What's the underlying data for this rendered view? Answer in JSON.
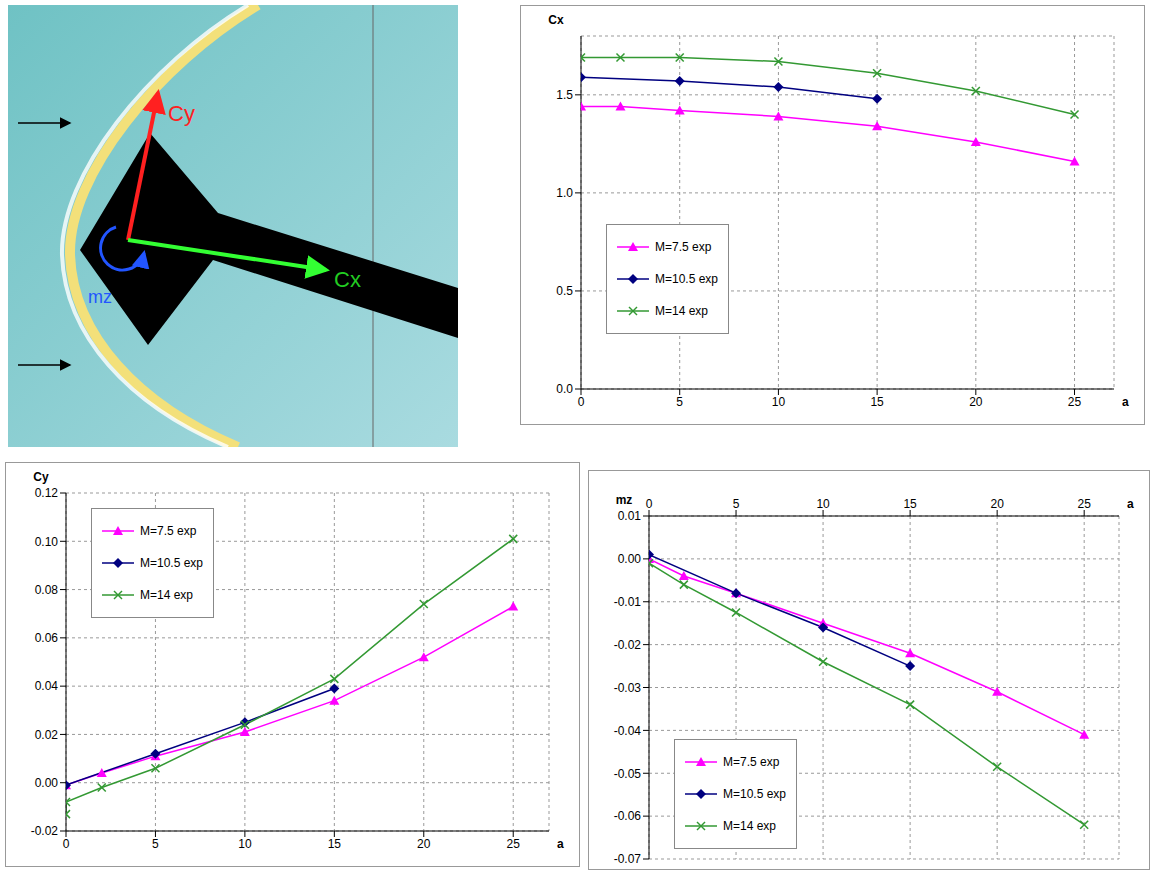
{
  "image": {
    "labels": [
      "Cy",
      "Cx",
      "mz"
    ]
  },
  "chart_data": [
    {
      "type": "line",
      "y_label": "Cx",
      "x_label": "a",
      "xlim": [
        0,
        27
      ],
      "xticks": [
        0,
        5,
        10,
        15,
        20,
        25
      ],
      "ylim": [
        0,
        1.8
      ],
      "yticks": [
        {
          "value": 0,
          "label": "0.0"
        },
        {
          "value": 0.5,
          "label": "0.5"
        },
        {
          "value": 1,
          "label": "1.0"
        },
        {
          "value": 1.5,
          "label": "1.5"
        }
      ],
      "grid": true,
      "legend": "lower left",
      "series": [
        {
          "name": "M=7.5 exp",
          "color": "#ff00ff",
          "marker": "triangle",
          "x": [
            0,
            2,
            5,
            10,
            15,
            20,
            25
          ],
          "values": [
            1.44,
            1.44,
            1.42,
            1.39,
            1.34,
            1.26,
            1.16
          ]
        },
        {
          "name": "M=10.5 exp",
          "color": "#000080",
          "marker": "diamond",
          "x": [
            0,
            5,
            10,
            15
          ],
          "values": [
            1.59,
            1.57,
            1.54,
            1.48
          ]
        },
        {
          "name": "M=14 exp",
          "color": "#339933",
          "marker": "x",
          "x": [
            0,
            2,
            5,
            10,
            15,
            20,
            25
          ],
          "values": [
            1.69,
            1.69,
            1.69,
            1.67,
            1.61,
            1.52,
            1.4
          ]
        }
      ]
    },
    {
      "type": "line",
      "y_label": "Cy",
      "x_label": "a",
      "xlim": [
        0,
        27
      ],
      "xticks": [
        0,
        5,
        10,
        15,
        20,
        25
      ],
      "ylim": [
        -0.02,
        0.12
      ],
      "yticks": [
        -0.02,
        {
          "value": 0,
          "label": "0.00"
        },
        0.02,
        0.04,
        0.06,
        0.08,
        {
          "value": 0.1,
          "label": "0.10"
        },
        0.12
      ],
      "grid": true,
      "legend": "upper left",
      "series": [
        {
          "name": "M=7.5 exp",
          "color": "#ff00ff",
          "marker": "triangle",
          "x": [
            0,
            2,
            5,
            10,
            15,
            20,
            25
          ],
          "values": [
            -0.001,
            0.004,
            0.011,
            0.021,
            0.034,
            0.052,
            0.073
          ]
        },
        {
          "name": "M=10.5 exp",
          "color": "#000080",
          "marker": "diamond",
          "x": [
            0,
            5,
            10,
            15
          ],
          "values": [
            -0.001,
            0.012,
            0.025,
            0.039
          ]
        },
        {
          "name": "M=14 exp",
          "color": "#339933",
          "marker": "x",
          "x": [
            0,
            0,
            2,
            5,
            10,
            15,
            20,
            25
          ],
          "values": [
            -0.013,
            -0.008,
            -0.002,
            0.006,
            0.024,
            0.043,
            0.074,
            0.101
          ]
        }
      ]
    },
    {
      "type": "line",
      "y_label": "mz",
      "x_label": "a",
      "xlim": [
        0,
        27
      ],
      "xticks": [
        0,
        5,
        10,
        15,
        20,
        25
      ],
      "ylim": [
        -0.07,
        0.01
      ],
      "yticks": [
        -0.07,
        -0.06,
        -0.05,
        -0.04,
        -0.03,
        -0.02,
        -0.01,
        {
          "value": 0,
          "label": "0.00"
        },
        0.01
      ],
      "grid": true,
      "legend": "lower left",
      "series": [
        {
          "name": "M=7.5 exp",
          "color": "#ff00ff",
          "marker": "triangle",
          "x": [
            0,
            2,
            5,
            10,
            15,
            20,
            25
          ],
          "values": [
            0,
            -0.004,
            -0.008,
            -0.015,
            -0.022,
            -0.031,
            -0.041
          ]
        },
        {
          "name": "M=10.5 exp",
          "color": "#000080",
          "marker": "diamond",
          "x": [
            0,
            5,
            10,
            15
          ],
          "values": [
            0.001,
            -0.008,
            -0.016,
            -0.025
          ]
        },
        {
          "name": "M=14 exp",
          "color": "#339933",
          "marker": "x",
          "x": [
            0,
            2,
            5,
            10,
            15,
            20,
            25
          ],
          "values": [
            -0.001,
            -0.006,
            -0.0125,
            -0.024,
            -0.034,
            -0.0485,
            -0.062
          ]
        }
      ]
    }
  ]
}
